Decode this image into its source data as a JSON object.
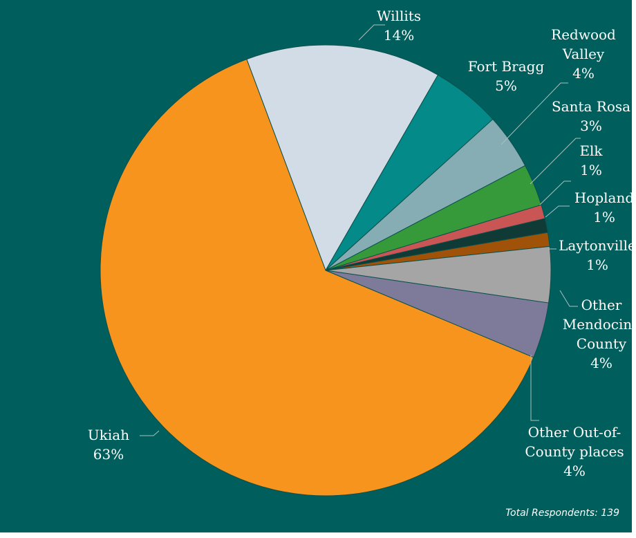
{
  "chart_data": {
    "type": "pie",
    "title": "",
    "series": [
      {
        "values": [
          14,
          5,
          4,
          3,
          1,
          1,
          1,
          4,
          4,
          63
        ],
        "labels": [
          "Willits",
          "Fort Bragg",
          "Redwood Valley",
          "Santa Rosa",
          "Elk",
          "Hopland",
          "Laytonville",
          "Other Mendocino County",
          "Other Out-of-County places",
          "Ukiah"
        ],
        "display_labels": [
          [
            "Willits",
            "14%"
          ],
          [
            "Fort Bragg",
            "5%"
          ],
          [
            "Redwood",
            "Valley",
            "4%"
          ],
          [
            "Santa Rosa",
            "3%"
          ],
          [
            "Elk",
            "1%"
          ],
          [
            "Hopland",
            "1%"
          ],
          [
            "Laytonville",
            "1%"
          ],
          [
            "Other",
            "Mendocino",
            "County",
            "4%"
          ],
          [
            "Other Out-of-",
            "County places",
            "4%"
          ],
          [
            "Ukiah",
            "63%"
          ]
        ],
        "colors": [
          "#d1dce6",
          "#038a89",
          "#86adb4",
          "#36993a",
          "#c95655",
          "#0f3a36",
          "#a05208",
          "#a5a5a5",
          "#7e7a9a",
          "#f7941d"
        ]
      }
    ],
    "start_angle_deg": -20.5,
    "direction": "clockwise",
    "legend": "none",
    "labels_outside": true
  },
  "footer": {
    "note": "Total Respondents: 139"
  }
}
